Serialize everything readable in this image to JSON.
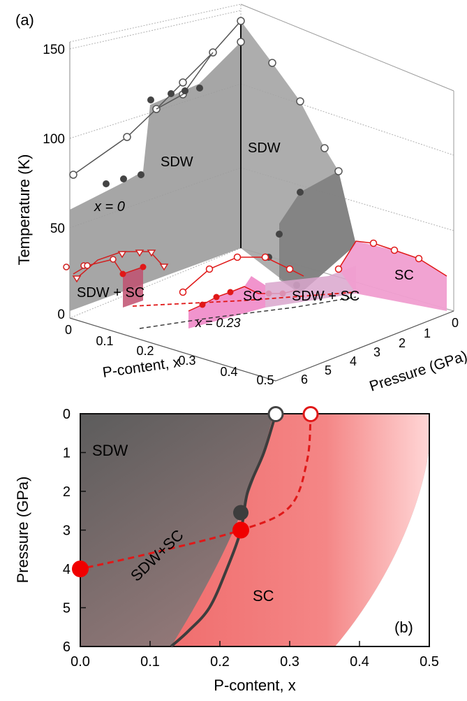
{
  "panel_a": {
    "panel_label": "(a)",
    "z_axis_label": "Temperature (K)",
    "x_axis_label": "P-content, x",
    "y_axis_label": "Pressure (GPa)",
    "z_ticks": [
      "0",
      "50",
      "100",
      "150"
    ],
    "x_ticks": [
      "0",
      "0.1",
      "0.2",
      "0.3",
      "0.4",
      "0.5"
    ],
    "p_ticks": [
      "0",
      "1",
      "2",
      "3",
      "4",
      "5",
      "6"
    ],
    "annotations": {
      "sdw_left": "SDW",
      "sdw_right": "SDW",
      "x0": "x = 0",
      "x023": "x = 0.23",
      "sdw_sc_left": "SDW + SC",
      "sdw_sc_right": "SDW + SC",
      "sc_mid": "SC",
      "sc_right": "SC"
    }
  },
  "panel_b": {
    "panel_label": "(b)",
    "xlabel": "P-content, x",
    "ylabel": "Pressure (GPa)",
    "x_ticks": [
      "0.0",
      "0.1",
      "0.2",
      "0.3",
      "0.4",
      "0.5"
    ],
    "y_ticks": [
      "0",
      "1",
      "2",
      "3",
      "4",
      "5",
      "6"
    ],
    "region_labels": {
      "sdw": "SDW",
      "sdw_sc": "SDW+SC",
      "sc": "SC"
    }
  },
  "chart_data": [
    {
      "type": "scatter",
      "panel": "(a)",
      "zlabel": "Temperature (K)",
      "xlabel": "P-content, x",
      "ylabel": "Pressure (GPa)",
      "zlim": [
        0,
        160
      ],
      "xlim": [
        0,
        0.5
      ],
      "ylim": [
        0,
        6
      ],
      "series": [
        {
          "values": [
            [
              0,
              0.0,
              80
            ],
            [
              0,
              1.0,
              100
            ],
            [
              0,
              2.0,
              117
            ],
            [
              0,
              2.5,
              125
            ],
            [
              0,
              3.0,
              131
            ],
            [
              0,
              4.5,
              147
            ],
            [
              0,
              6.0,
              166
            ]
          ]
        },
        {
          "values": [
            [
              0,
              1.0,
              75
            ],
            [
              0,
              2.0,
              77
            ],
            [
              0,
              2.6,
              80
            ],
            [
              0,
              2.9,
              120
            ],
            [
              0,
              3.6,
              122
            ],
            [
              0,
              4.6,
              124
            ],
            [
              0,
              5.4,
              127
            ]
          ]
        },
        {
          "values": [
            [
              0,
              0.0,
              153
            ],
            [
              0,
              1.0,
              140
            ],
            [
              0,
              2.0,
              128
            ],
            [
              0,
              3.0,
              115
            ],
            [
              0,
              4.0,
              100
            ],
            [
              0,
              5.0,
              85
            ]
          ]
        },
        {
          "values": [
            [
              0.23,
              3.0,
              78
            ],
            [
              0.23,
              2.0,
              50
            ],
            [
              0.23,
              1.0,
              22
            ],
            [
              0.23,
              0.0,
              8
            ]
          ]
        }
      ]
    },
    {
      "type": "line",
      "panel": "(b)",
      "xlabel": "P-content, x",
      "ylabel": "Pressure (GPa)",
      "xlim": [
        0,
        0.5
      ],
      "ylim": [
        6,
        0
      ],
      "series": [
        {
          "x": [
            0.28,
            0.263,
            0.24,
            0.23,
            0.21,
            0.185,
            0.155,
            0.13
          ],
          "y": [
            0,
            1,
            2,
            3,
            4,
            5,
            5.6,
            6
          ]
        },
        {
          "x": [
            0.33,
            0.325,
            0.3,
            0.23,
            0.1,
            0.0
          ],
          "y": [
            0,
            1.2,
            2.4,
            3.0,
            3.6,
            4.0
          ]
        },
        {
          "x": [
            0.28,
            0.33
          ],
          "y": [
            0,
            0
          ]
        },
        {
          "x": [
            0.0,
            0.23
          ],
          "y": [
            4.0,
            3.0
          ]
        },
        {
          "x": [
            0.23
          ],
          "y": [
            2.55
          ]
        }
      ]
    }
  ]
}
